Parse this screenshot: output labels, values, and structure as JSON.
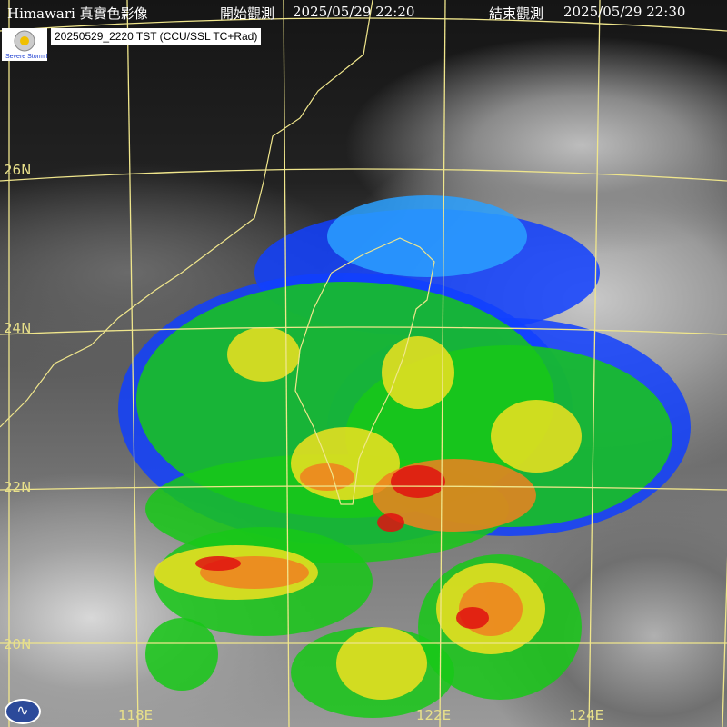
{
  "header": {
    "satellite_title": "Himawari 真實色影像",
    "start_label": "開始觀測",
    "start_time": "2025/05/29 22:20",
    "end_label": "結束觀測",
    "end_time": "2025/05/29 22:30"
  },
  "stamp": "20250529_2220 TST (CCU/SSL TC+Rad)",
  "logo_text": "Severe Storm Lab",
  "latitude_labels": [
    "26N",
    "24N",
    "22N",
    "20N"
  ],
  "longitude_labels": [
    "118E",
    "122E",
    "124E"
  ],
  "radar_colors": {
    "blue": "#1040ff",
    "lightblue": "#2aa0ff",
    "green": "#18c818",
    "yellow": "#f0e020",
    "orange": "#f08020",
    "red": "#e01010"
  },
  "grid_color": "#f0e68c",
  "coast_color": "#f0e68c"
}
